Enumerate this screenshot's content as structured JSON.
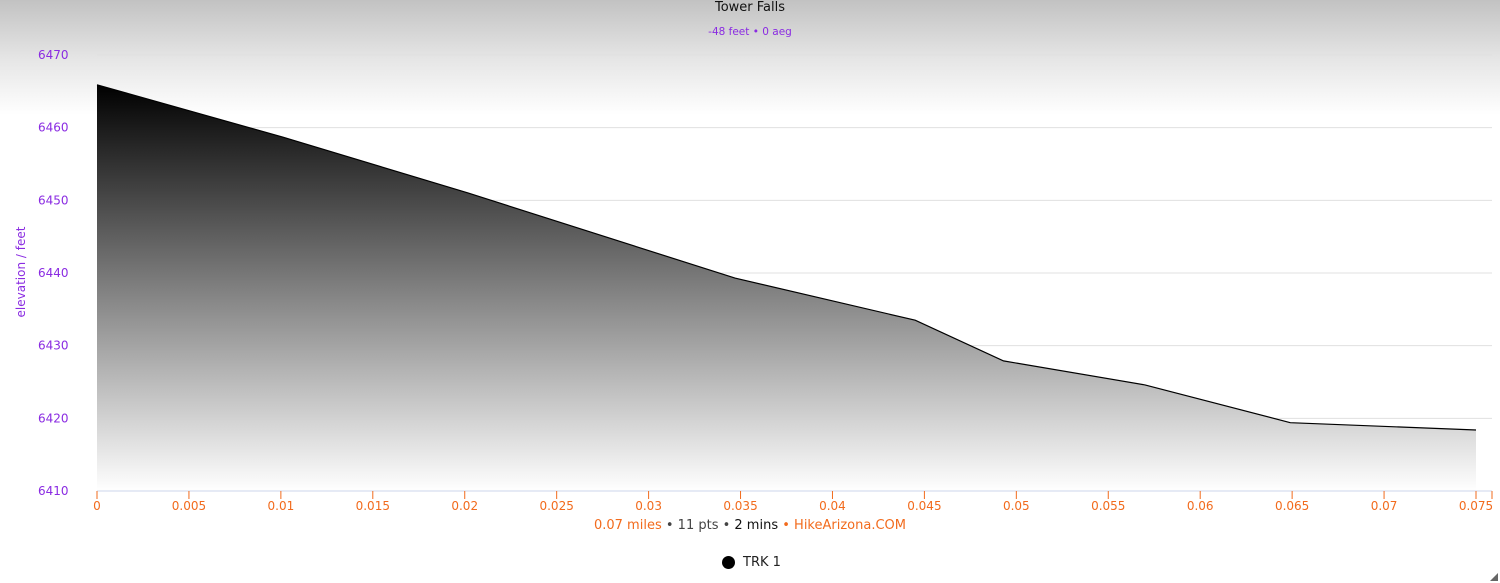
{
  "title": "Tower Falls",
  "subtitle": "-48 feet • 0 aeg",
  "footer": {
    "distance": "0.07 miles",
    "points": "11 pts",
    "duration": "2 mins",
    "site": "HikeArizona.COM",
    "sep": " • "
  },
  "legend": {
    "label": "TRK 1",
    "icon": "circle-marker-icon"
  },
  "colors": {
    "axis_y": "#8a2be2",
    "axis_x": "#f26b1d",
    "line": "#000000",
    "fill_top": "#000000",
    "fill_bottom": "#ffffff"
  },
  "chart_data": {
    "type": "area",
    "title": "Tower Falls",
    "ylabel": "elevation / feet",
    "xlabel": "",
    "xlim": [
      0,
      0.0759
    ],
    "ylim": [
      6410,
      6470
    ],
    "xticks": [
      0,
      0.005,
      0.01,
      0.015,
      0.02,
      0.025,
      0.03,
      0.035,
      0.04,
      0.045,
      0.05,
      0.055,
      0.06,
      0.065,
      0.07,
      0.075
    ],
    "xtick_labels": [
      "0",
      "0.005",
      "0.01",
      "0.015",
      "0.02",
      "0.025",
      "0.03",
      "0.035",
      "0.04",
      "0.045",
      "0.05",
      "0.055",
      "0.06",
      "0.065",
      "0.07",
      "0.075"
    ],
    "yticks": [
      6410,
      6420,
      6430,
      6440,
      6450,
      6460,
      6470
    ],
    "ytick_labels": [
      "6410",
      "6420",
      "6430",
      "6440",
      "6450",
      "6460",
      "6470"
    ],
    "grid": true,
    "legend_placement": "bottom",
    "series": [
      {
        "name": "TRK 1",
        "x": [
          0,
          0.0101,
          0.0202,
          0.0347,
          0.0445,
          0.0493,
          0.057,
          0.0649,
          0.075
        ],
        "y": [
          6465.9,
          6458.7,
          6451.0,
          6439.3,
          6433.5,
          6427.9,
          6424.6,
          6419.4,
          6418.4
        ]
      }
    ]
  }
}
